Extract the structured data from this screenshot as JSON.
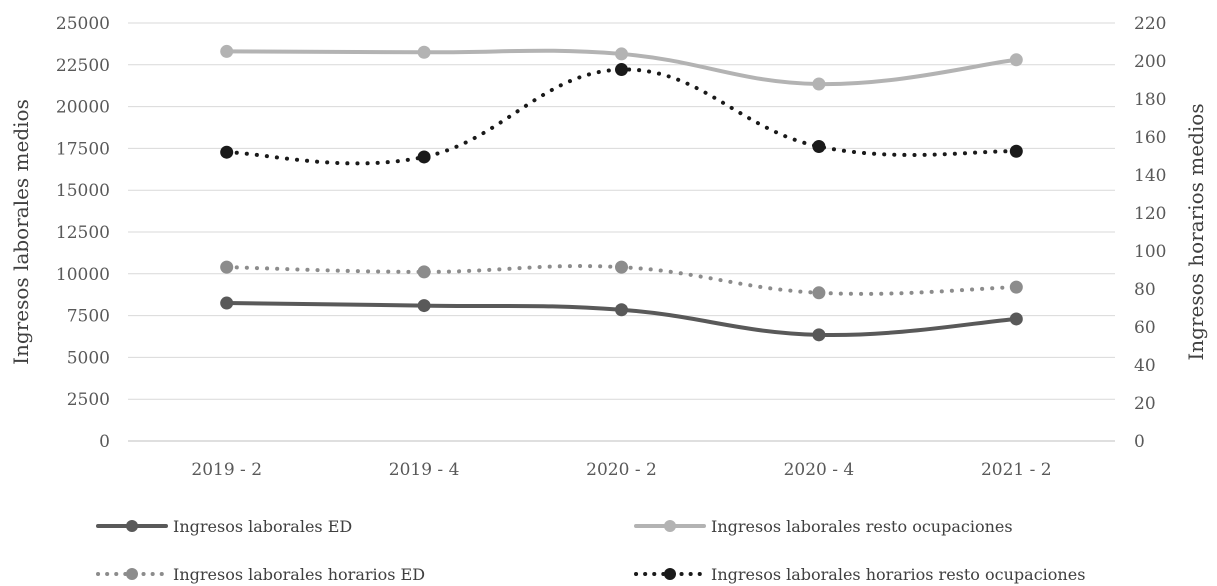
{
  "chart_data": {
    "type": "line",
    "categories": [
      "2019 - 2",
      "2019 - 4",
      "2020 - 2",
      "2020 - 4",
      "2021 - 2"
    ],
    "ylabel_left": "Ingresos laborales medios",
    "ylabel_right": "Ingresos horarios medios",
    "ylim_left": [
      0,
      25000
    ],
    "ylim_right": [
      0,
      220
    ],
    "yticks_left": [
      "0",
      "2500",
      "5000",
      "7500",
      "10000",
      "12500",
      "15000",
      "17500",
      "20000",
      "22500",
      "25000"
    ],
    "yticks_right": [
      "0",
      "20",
      "40",
      "60",
      "80",
      "100",
      "120",
      "140",
      "160",
      "180",
      "200",
      "220"
    ],
    "grid": true,
    "legend_position": "bottom",
    "series": [
      {
        "name": "Ingresos laborales ED",
        "axis": "left",
        "style": "solid",
        "color": "#595959",
        "values": [
          8250,
          8100,
          7850,
          6350,
          7300
        ]
      },
      {
        "name": "Ingresos laborales resto ocupaciones",
        "axis": "left",
        "style": "solid",
        "color": "#b3b3b3",
        "values": [
          23300,
          23250,
          23150,
          21350,
          22800
        ]
      },
      {
        "name": "Ingresos laborales horarios ED",
        "axis": "right",
        "style": "dotted",
        "color": "#8c8c8c",
        "values": [
          91.5,
          89,
          91.5,
          78,
          81
        ]
      },
      {
        "name": "Ingresos laborales horarios resto ocupaciones",
        "axis": "right",
        "style": "dotted",
        "color": "#1a1a1a",
        "values": [
          152,
          149.5,
          195.5,
          155,
          152.5
        ]
      }
    ]
  }
}
